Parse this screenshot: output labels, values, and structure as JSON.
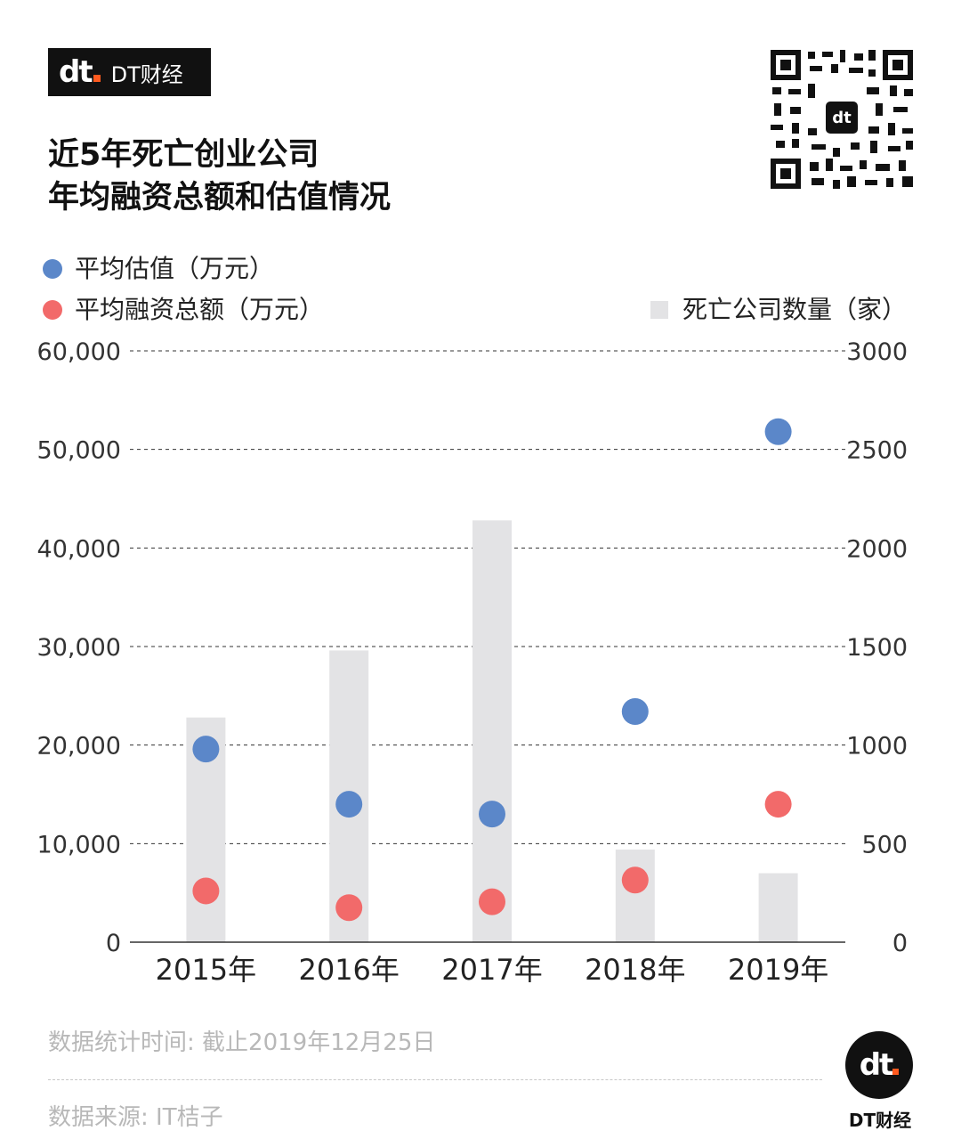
{
  "brand": {
    "name": "DT财经",
    "logo_text": "dt"
  },
  "title_lines": [
    "近5年死亡创业公司",
    "年均融资总额和估值情况"
  ],
  "legend": {
    "valuation": "平均估值（万元）",
    "financing": "平均融资总额（万元）",
    "dead_companies": "死亡公司数量（家）"
  },
  "colors": {
    "valuation": "#5b87c9",
    "financing": "#f26a6a",
    "bars": "#e3e3e5"
  },
  "chart_data": {
    "type": "bar",
    "categories": [
      "2015年",
      "2016年",
      "2017年",
      "2018年",
      "2019年"
    ],
    "series": [
      {
        "name": "死亡公司数量（家）",
        "kind": "bar",
        "axis": "right",
        "values": [
          1140,
          1480,
          2140,
          470,
          350
        ]
      },
      {
        "name": "平均估值（万元）",
        "kind": "scatter",
        "axis": "left",
        "values": [
          19600,
          14000,
          13000,
          23400,
          51800
        ]
      },
      {
        "name": "平均融资总额（万元）",
        "kind": "scatter",
        "axis": "left",
        "values": [
          5200,
          3500,
          4100,
          6300,
          14000
        ]
      }
    ],
    "y_left": {
      "ylim": [
        0,
        60000
      ],
      "ticks": [
        "0",
        "10,000",
        "20,000",
        "30,000",
        "40,000",
        "50,000",
        "60,000"
      ]
    },
    "y_right": {
      "ylim": [
        0,
        3000
      ],
      "ticks": [
        "0",
        "500",
        "1000",
        "1500",
        "2000",
        "2500",
        "3000"
      ]
    },
    "grid": "dashed horizontal",
    "legend_position": "top"
  },
  "footer": {
    "stat_time": "数据统计时间: 截止2019年12月25日",
    "source": "数据来源: IT桔子"
  }
}
